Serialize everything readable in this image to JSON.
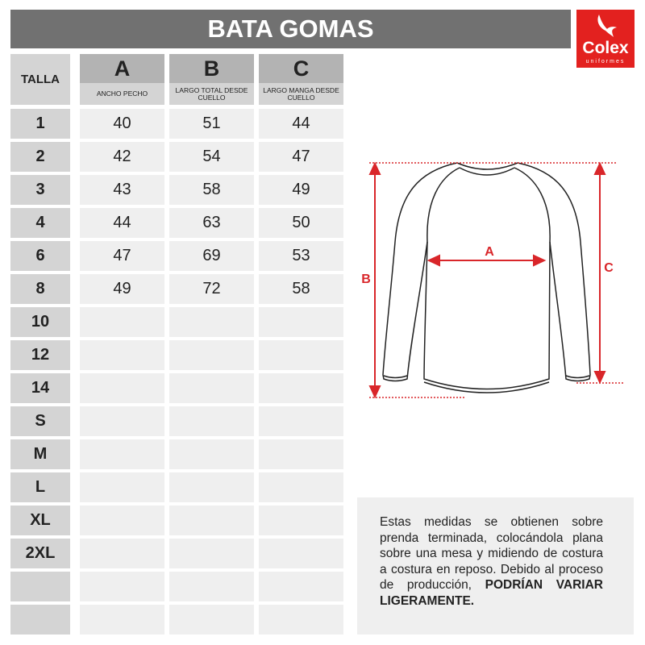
{
  "title": "BATA GOMAS",
  "logo": {
    "brand": "Colex",
    "sub": "uniformes",
    "color": "#e3211f"
  },
  "table": {
    "talla_label": "TALLA",
    "columns": [
      {
        "letter": "A",
        "desc": "ANCHO PECHO"
      },
      {
        "letter": "B",
        "desc": "LARGO TOTAL DESDE CUELLO"
      },
      {
        "letter": "C",
        "desc": "LARGO MANGA DESDE CUELLO"
      }
    ],
    "rows": [
      {
        "size": "1",
        "values": [
          "40",
          "51",
          "44"
        ]
      },
      {
        "size": "2",
        "values": [
          "42",
          "54",
          "47"
        ]
      },
      {
        "size": "3",
        "values": [
          "43",
          "58",
          "49"
        ]
      },
      {
        "size": "4",
        "values": [
          "44",
          "63",
          "50"
        ]
      },
      {
        "size": "6",
        "values": [
          "47",
          "69",
          "53"
        ]
      },
      {
        "size": "8",
        "values": [
          "49",
          "72",
          "58"
        ]
      },
      {
        "size": "10",
        "values": [
          "",
          "",
          ""
        ]
      },
      {
        "size": "12",
        "values": [
          "",
          "",
          ""
        ]
      },
      {
        "size": "14",
        "values": [
          "",
          "",
          ""
        ]
      },
      {
        "size": "S",
        "values": [
          "",
          "",
          ""
        ]
      },
      {
        "size": "M",
        "values": [
          "",
          "",
          ""
        ]
      },
      {
        "size": "L",
        "values": [
          "",
          "",
          ""
        ]
      },
      {
        "size": "XL",
        "values": [
          "",
          "",
          ""
        ]
      },
      {
        "size": "2XL",
        "values": [
          "",
          "",
          ""
        ]
      },
      {
        "size": "",
        "values": [
          "",
          "",
          ""
        ]
      },
      {
        "size": "",
        "values": [
          "",
          "",
          ""
        ]
      }
    ]
  },
  "diagram": {
    "label_a": "A",
    "label_b": "B",
    "label_c": "C",
    "accent": "#d9262a"
  },
  "note": {
    "text": "Estas medidas se obtienen sobre prenda terminada, colocándola plana sobre una mesa y midiendo de costura a costura en reposo. Debido al proceso de producción,",
    "bold": "PODRÍAN VARIAR LIGERAMENTE."
  }
}
